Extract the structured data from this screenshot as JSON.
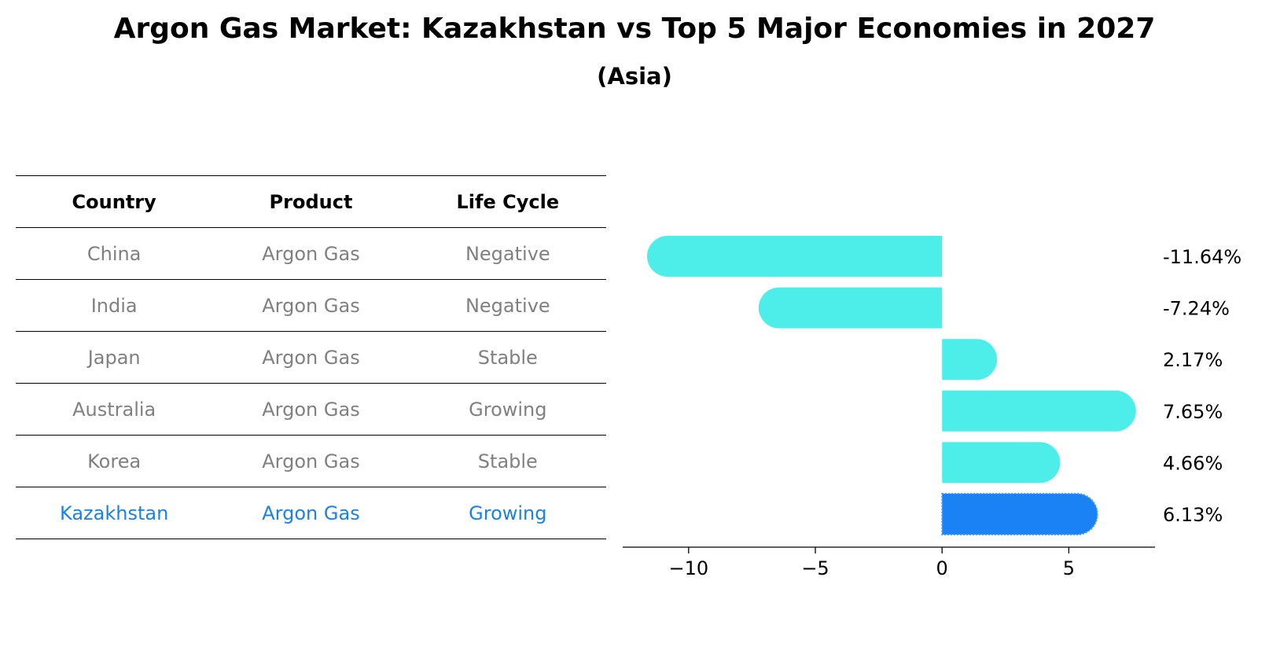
{
  "title": "Argon Gas Market: Kazakhstan vs Top 5 Major Economies in 2027",
  "subtitle": "(Asia)",
  "table": {
    "headers": [
      "Country",
      "Product",
      "Life Cycle"
    ],
    "rows": [
      {
        "country": "China",
        "product": "Argon Gas",
        "life_cycle": "Negative"
      },
      {
        "country": "India",
        "product": "Argon Gas",
        "life_cycle": "Negative"
      },
      {
        "country": "Japan",
        "product": "Argon Gas",
        "life_cycle": "Stable"
      },
      {
        "country": "Australia",
        "product": "Argon Gas",
        "life_cycle": "Growing"
      },
      {
        "country": "Korea",
        "product": "Argon Gas",
        "life_cycle": "Stable"
      },
      {
        "country": "Kazakhstan",
        "product": "Argon Gas",
        "life_cycle": "Growing"
      }
    ]
  },
  "colors": {
    "bar": "#4deeea",
    "highlight": "#1a82f5",
    "muted_text": "#808080",
    "highlight_text": "#1a82e2"
  },
  "chart_data": {
    "type": "bar",
    "orientation": "horizontal",
    "categories": [
      "China",
      "India",
      "Japan",
      "Australia",
      "Korea",
      "Kazakhstan"
    ],
    "values": [
      -11.64,
      -7.24,
      2.17,
      7.65,
      4.66,
      6.13
    ],
    "value_labels": [
      "-11.64%",
      "-7.24%",
      "2.17%",
      "7.65%",
      "4.66%",
      "6.13%"
    ],
    "highlight_category": "Kazakhstan",
    "xlim": [
      -12.6,
      8.4
    ],
    "xticks": [
      -10,
      -5,
      0,
      5
    ],
    "xtick_labels": [
      "−10",
      "−5",
      "0",
      "5"
    ],
    "grid": false,
    "legend": "none"
  }
}
